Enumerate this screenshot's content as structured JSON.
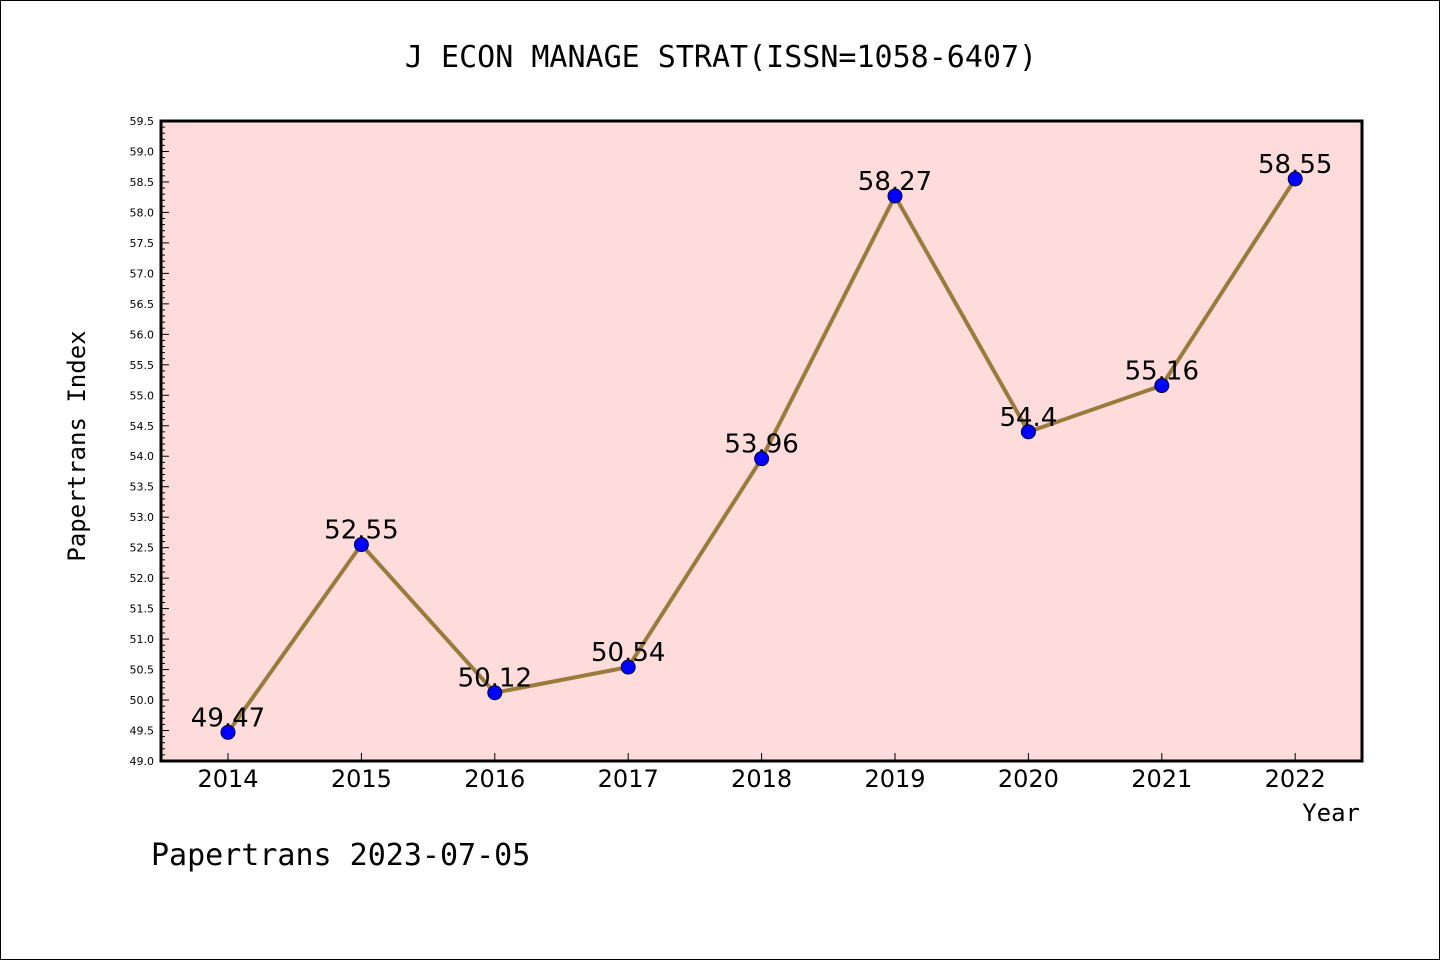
{
  "chart_data": {
    "type": "line",
    "title": "J ECON MANAGE STRAT(ISSN=1058-6407)",
    "xlabel": "Year",
    "ylabel": "Papertrans Index",
    "categories": [
      "2014",
      "2015",
      "2016",
      "2017",
      "2018",
      "2019",
      "2020",
      "2021",
      "2022"
    ],
    "values": [
      49.47,
      52.55,
      50.12,
      50.54,
      53.96,
      58.27,
      54.4,
      55.16,
      58.55
    ],
    "data_labels": [
      "49.47",
      "52.55",
      "50.12",
      "50.54",
      "53.96",
      "58.27",
      "54.4",
      "55.16",
      "58.55"
    ],
    "ylim": [
      49.0,
      59.5
    ],
    "yticks": [
      "49.0",
      "49.5",
      "50.0",
      "50.5",
      "51.0",
      "51.5",
      "52.0",
      "52.5",
      "53.0",
      "53.5",
      "54.0",
      "54.5",
      "55.0",
      "55.5",
      "56.0",
      "56.5",
      "57.0",
      "57.5",
      "58.0",
      "58.5",
      "59.0",
      "59.5"
    ],
    "grid": false,
    "colors": {
      "plot_background": "#ffdcdc",
      "line": "#9a7b3c",
      "marker": "#0000ff",
      "axis": "#000000"
    },
    "footer": "Papertrans 2023-07-05"
  }
}
